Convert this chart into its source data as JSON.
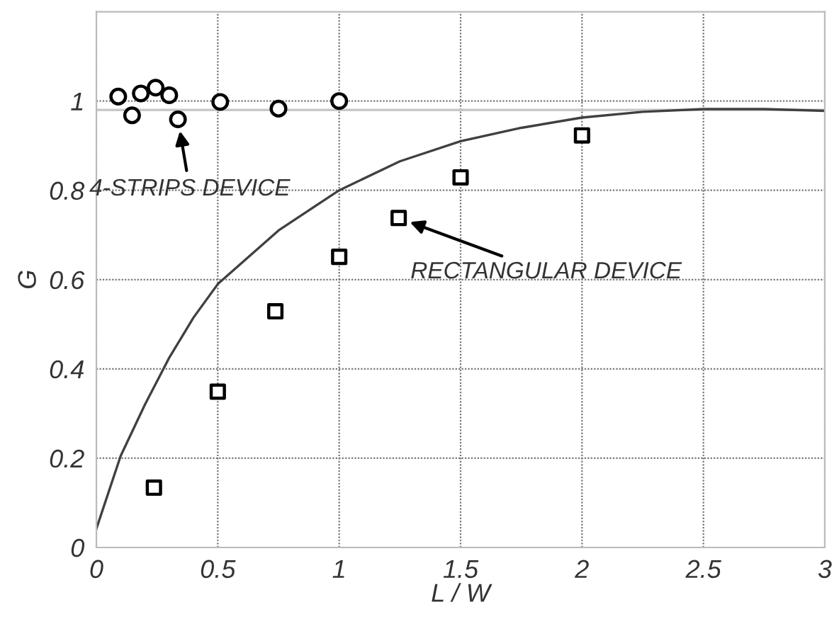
{
  "chart_data": {
    "type": "scatter",
    "xlabel": "L / W",
    "ylabel": "G",
    "xlim": [
      0,
      3
    ],
    "ylim": [
      0,
      1.2
    ],
    "xticks": [
      0,
      0.5,
      1,
      1.5,
      2,
      2.5,
      3
    ],
    "yticks": [
      0,
      0.2,
      0.4,
      0.6,
      0.8,
      1
    ],
    "grid": true,
    "series": [
      {
        "marker": "circle",
        "color": "#000000",
        "x": [
          0.09,
          0.147,
          0.183,
          0.244,
          0.3,
          0.336,
          0.51,
          0.75,
          1.0
        ],
        "values": [
          1.01,
          0.968,
          1.017,
          1.03,
          1.013,
          0.959,
          0.998,
          0.983,
          1.0
        ]
      },
      {
        "marker": "square",
        "color": "#000000",
        "x": [
          0.237,
          0.5,
          0.737,
          1.0,
          1.245,
          1.5,
          2.0
        ],
        "values": [
          0.134,
          0.349,
          0.529,
          0.651,
          0.738,
          0.829,
          0.923
        ]
      },
      {
        "type": "line",
        "color": "#404040",
        "x": [
          0,
          0.1,
          0.2,
          0.3,
          0.4,
          0.5,
          0.75,
          1,
          1.25,
          1.5,
          1.75,
          2,
          2.25,
          2.5,
          2.75,
          3
        ],
        "values": [
          0.042,
          0.205,
          0.32,
          0.425,
          0.515,
          0.59,
          0.71,
          0.8,
          0.865,
          0.91,
          0.94,
          0.963,
          0.976,
          0.982,
          0.982,
          0.978
        ]
      }
    ],
    "ref_lines": [
      {
        "axis": "y",
        "value": 0.98,
        "color": "#c8c8c8",
        "line_style": "solid"
      }
    ],
    "annotations": [
      {
        "text": "4-STRIPS DEVICE",
        "x": 0.336,
        "y": 0.959
      },
      {
        "text": "RECTANGULAR DEVICE",
        "x": 1.245,
        "y": 0.738
      }
    ]
  }
}
